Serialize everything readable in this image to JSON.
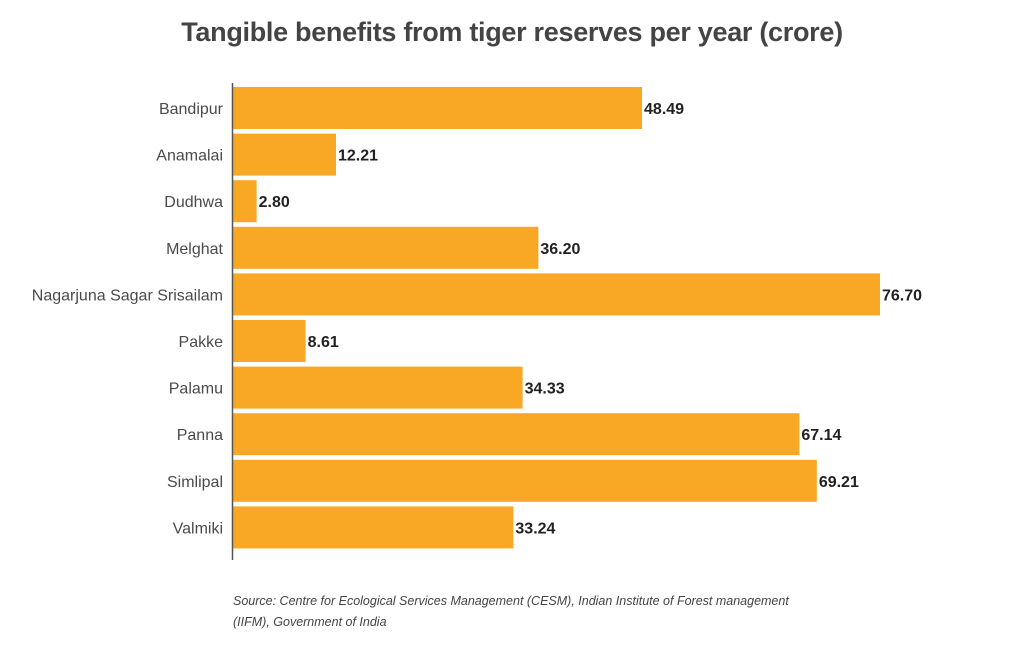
{
  "chart_data": {
    "type": "bar",
    "orientation": "horizontal",
    "title": "Tangible benefits from tiger reserves per year (crore)",
    "categories": [
      "Bandipur",
      "Anamalai",
      "Dudhwa",
      "Melghat",
      "Nagarjuna Sagar Srisailam",
      "Pakke",
      "Palamu",
      "Panna",
      "Simlipal",
      "Valmiki"
    ],
    "values": [
      48.49,
      12.21,
      2.8,
      36.2,
      76.7,
      8.61,
      34.33,
      67.14,
      69.21,
      33.24
    ],
    "value_labels": [
      "48.49",
      "12.21",
      "2.80",
      "36.20",
      "76.70",
      "8.61",
      "34.33",
      "67.14",
      "69.21",
      "33.24"
    ],
    "xlabel": "",
    "ylabel": "",
    "xlim": [
      0,
      80
    ],
    "grid": false,
    "bar_color": "#F9A825",
    "source": "Source: Centre for Ecological Services Management (CESM), Indian Institute of Forest management (IIFM), Government of India"
  }
}
